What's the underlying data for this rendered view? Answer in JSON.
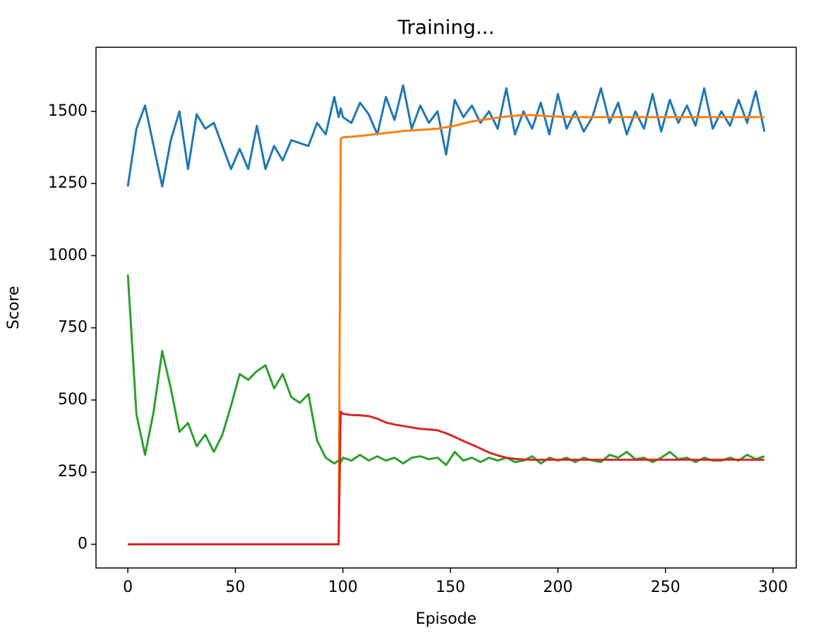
{
  "chart_data": {
    "type": "line",
    "title": "Training...",
    "x_label": "Episode",
    "y_label": "Score",
    "x": [
      0,
      4,
      8,
      12,
      16,
      20,
      24,
      28,
      32,
      36,
      40,
      44,
      48,
      52,
      56,
      60,
      64,
      68,
      72,
      76,
      80,
      84,
      88,
      92,
      96,
      98,
      99,
      100,
      104,
      108,
      112,
      116,
      120,
      124,
      128,
      132,
      136,
      140,
      144,
      148,
      152,
      156,
      160,
      164,
      168,
      172,
      176,
      180,
      184,
      188,
      192,
      196,
      200,
      204,
      208,
      212,
      216,
      220,
      224,
      228,
      232,
      236,
      240,
      244,
      248,
      252,
      256,
      260,
      264,
      268,
      272,
      276,
      280,
      284,
      288,
      292,
      296
    ],
    "series": [
      {
        "color": "#1f77b4",
        "values": [
          1240,
          1440,
          1520,
          1380,
          1240,
          1400,
          1500,
          1300,
          1490,
          1440,
          1460,
          1380,
          1300,
          1370,
          1300,
          1450,
          1300,
          1380,
          1330,
          1400,
          1390,
          1380,
          1460,
          1420,
          1550,
          1480,
          1510,
          1480,
          1460,
          1530,
          1490,
          1420,
          1550,
          1470,
          1590,
          1440,
          1520,
          1460,
          1500,
          1350,
          1540,
          1480,
          1520,
          1460,
          1500,
          1440,
          1580,
          1420,
          1500,
          1440,
          1530,
          1420,
          1560,
          1440,
          1500,
          1430,
          1480,
          1580,
          1460,
          1530,
          1420,
          1500,
          1440,
          1560,
          1430,
          1540,
          1460,
          1520,
          1450,
          1580,
          1440,
          1500,
          1450,
          1540,
          1460,
          1570,
          1430
        ]
      },
      {
        "color": "#ff7f0e",
        "values": [
          0,
          0,
          0,
          0,
          0,
          0,
          0,
          0,
          0,
          0,
          0,
          0,
          0,
          0,
          0,
          0,
          0,
          0,
          0,
          0,
          0,
          0,
          0,
          0,
          0,
          0,
          1405,
          1410,
          1412,
          1415,
          1418,
          1422,
          1425,
          1428,
          1432,
          1434,
          1436,
          1438,
          1440,
          1445,
          1450,
          1458,
          1465,
          1470,
          1474,
          1478,
          1482,
          1485,
          1487,
          1487,
          1485,
          1483,
          1482,
          1481,
          1480,
          1480,
          1480,
          1480,
          1480,
          1480,
          1480,
          1480,
          1480,
          1480,
          1480,
          1480,
          1480,
          1480,
          1480,
          1480,
          1480,
          1480,
          1480,
          1480,
          1480,
          1480,
          1480
        ]
      },
      {
        "color": "#2ca02c",
        "values": [
          935,
          450,
          310,
          460,
          670,
          540,
          390,
          420,
          340,
          380,
          320,
          380,
          480,
          590,
          570,
          600,
          620,
          540,
          590,
          510,
          490,
          520,
          360,
          300,
          280,
          290,
          285,
          300,
          290,
          310,
          290,
          305,
          290,
          300,
          280,
          300,
          305,
          295,
          300,
          275,
          320,
          290,
          300,
          285,
          300,
          290,
          300,
          285,
          290,
          305,
          280,
          300,
          290,
          300,
          285,
          300,
          290,
          285,
          310,
          300,
          320,
          295,
          300,
          285,
          300,
          320,
          295,
          300,
          285,
          300,
          290,
          290,
          300,
          290,
          310,
          295,
          305
        ]
      },
      {
        "color": "#d62728",
        "values": [
          0,
          0,
          0,
          0,
          0,
          0,
          0,
          0,
          0,
          0,
          0,
          0,
          0,
          0,
          0,
          0,
          0,
          0,
          0,
          0,
          0,
          0,
          0,
          0,
          0,
          0,
          460,
          452,
          448,
          447,
          444,
          435,
          422,
          415,
          410,
          405,
          400,
          398,
          395,
          385,
          372,
          358,
          345,
          332,
          318,
          308,
          300,
          296,
          294,
          293,
          293,
          293,
          293,
          293,
          293,
          293,
          293,
          293,
          293,
          293,
          293,
          293,
          293,
          293,
          293,
          293,
          293,
          293,
          293,
          293,
          293,
          293,
          293,
          293,
          293,
          293,
          293
        ]
      }
    ],
    "xlim": [
      -14.8,
      310.8
    ],
    "ylim": [
      -82,
      1722
    ],
    "xticks": [
      0,
      50,
      100,
      150,
      200,
      250,
      300
    ],
    "yticks": [
      0,
      250,
      500,
      750,
      1000,
      1250,
      1500
    ]
  }
}
